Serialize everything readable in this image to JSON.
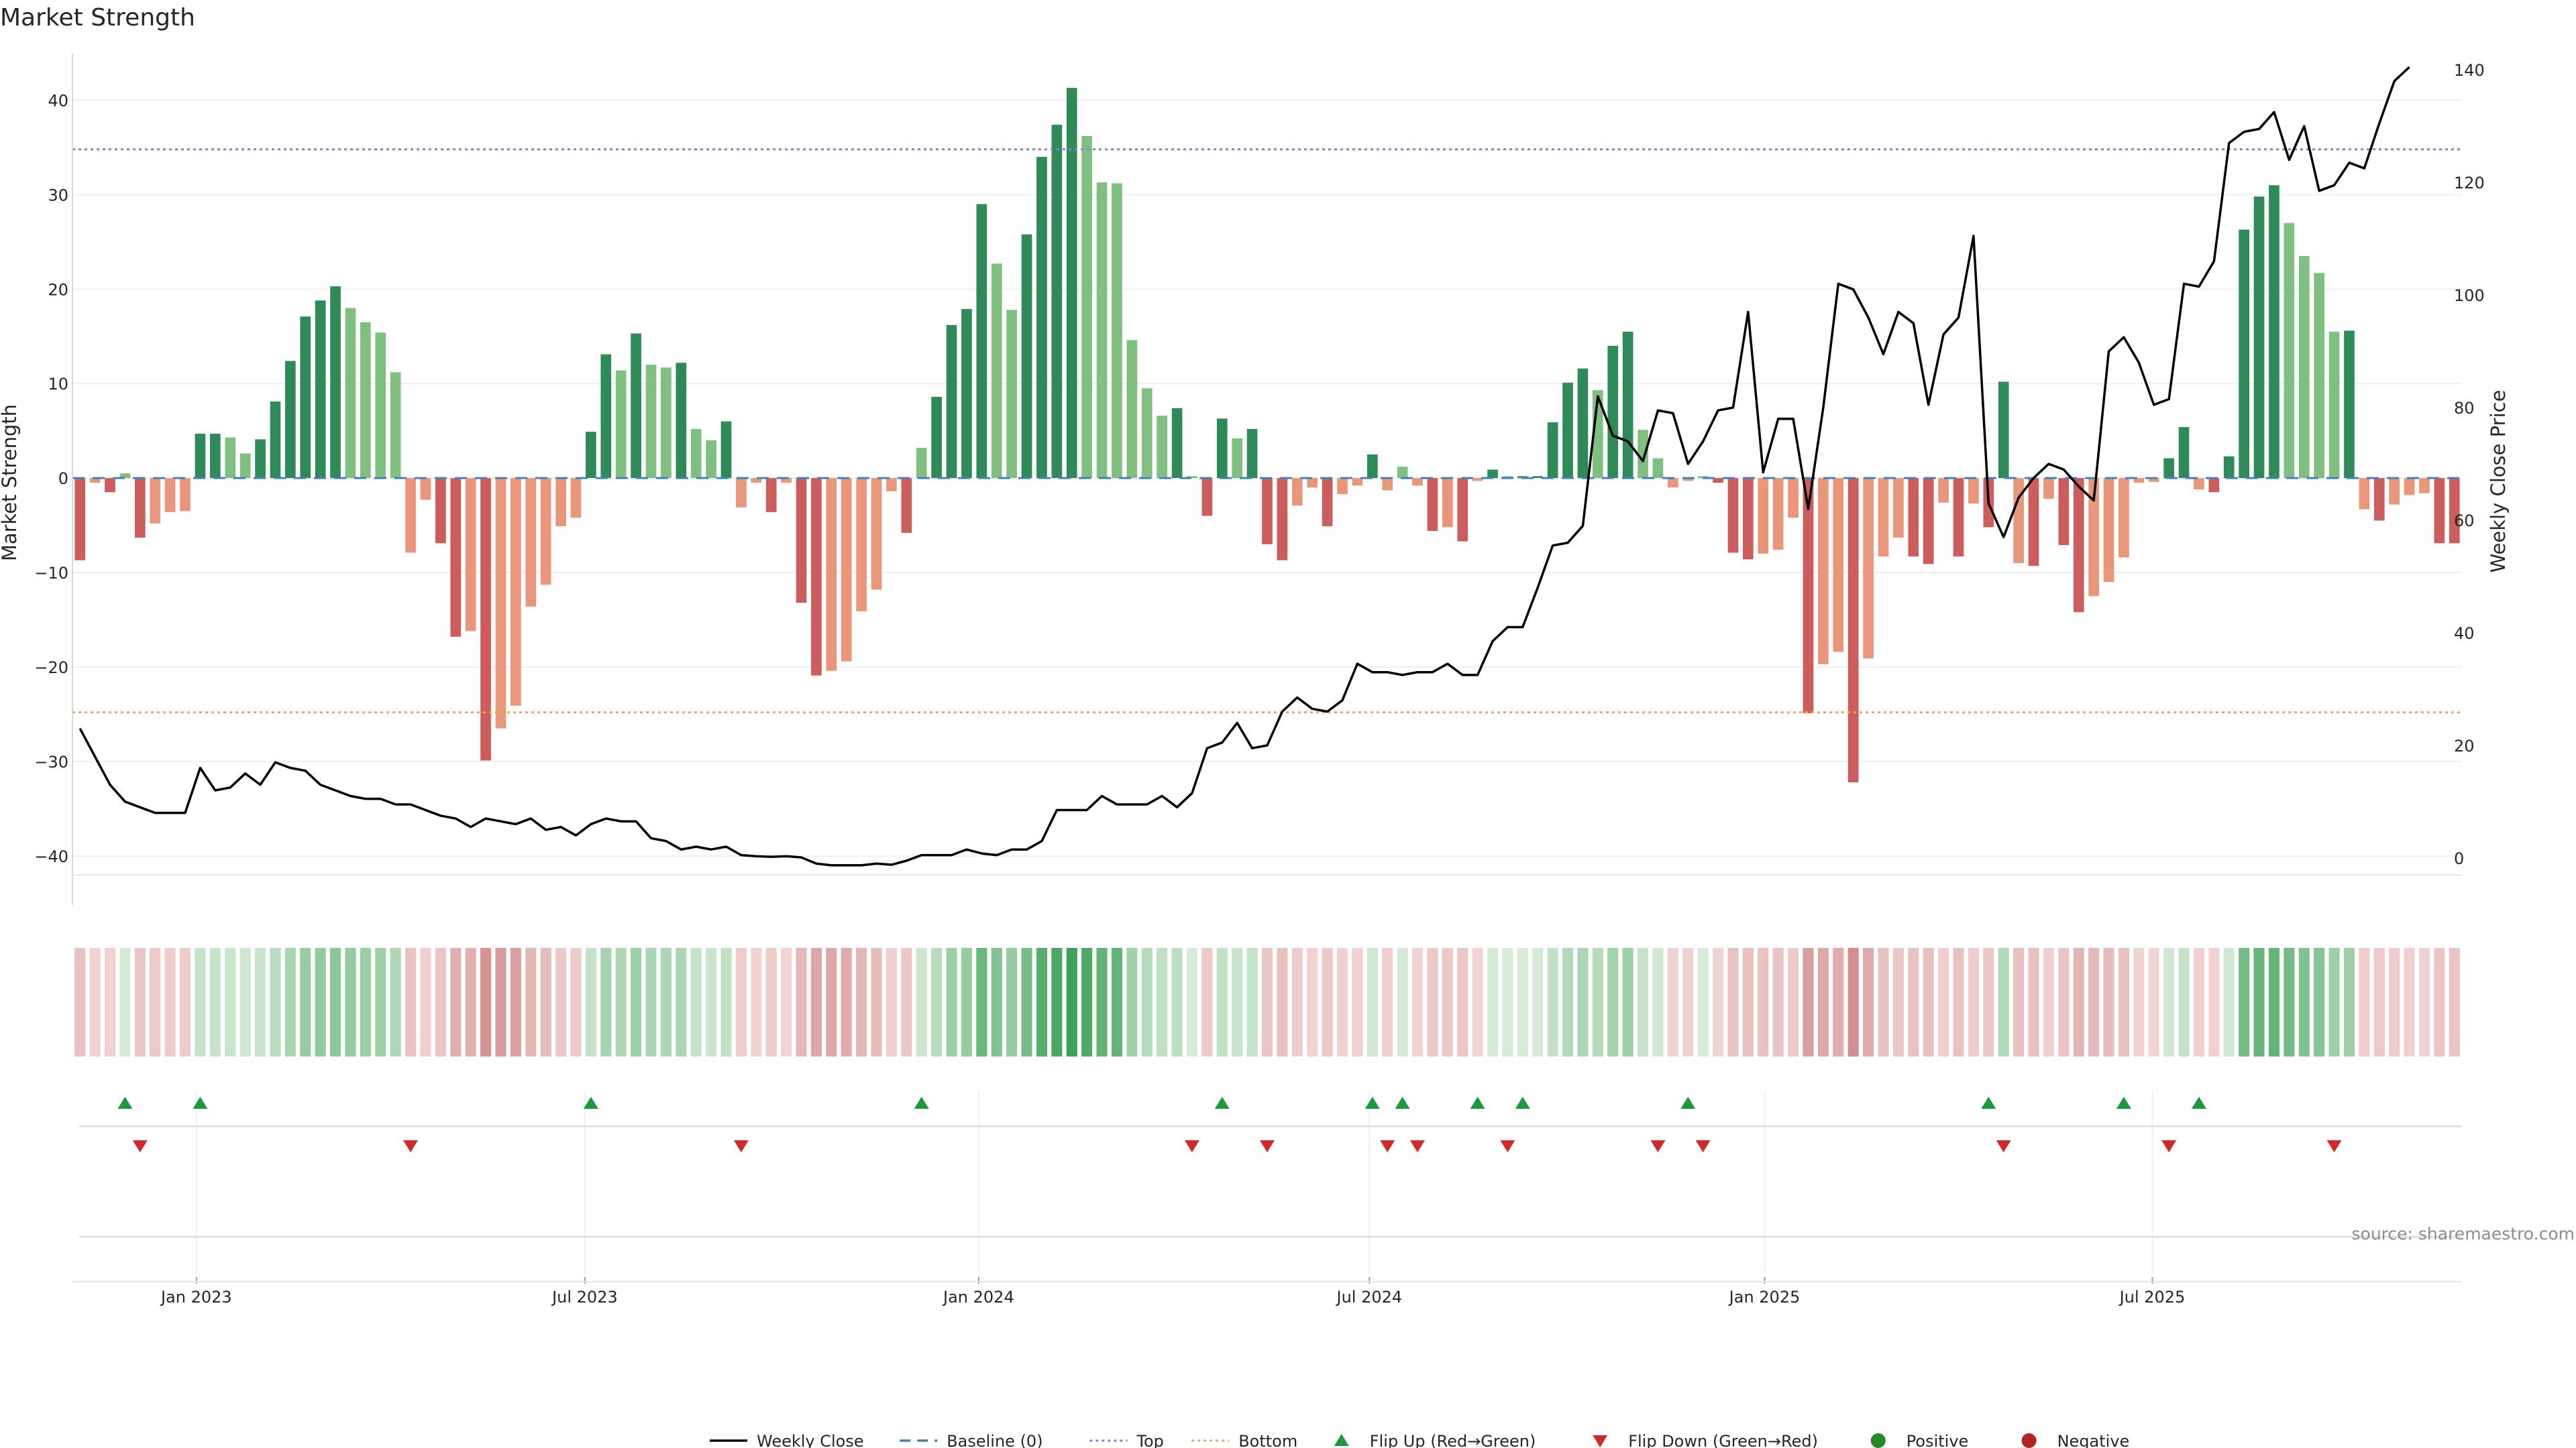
{
  "chart_data": {
    "type": "bar",
    "title": "Market Strength",
    "ylabel": "Market Strength",
    "y2label": "Weekly Close Price",
    "ylim": [
      -42,
      45
    ],
    "y2lim": [
      -3,
      143
    ],
    "y_ticks": [
      40,
      30,
      20,
      10,
      0,
      -10,
      -20,
      -30,
      -40
    ],
    "y_tick_labels": [
      "40",
      "30",
      "20",
      "10",
      "0",
      "−10",
      "−20",
      "−30",
      "−40"
    ],
    "y2_ticks": [
      140,
      120,
      100,
      80,
      60,
      40,
      20,
      0
    ],
    "y2_tick_labels": [
      "140",
      "120",
      "100",
      "80",
      "60",
      "40",
      "20",
      "0"
    ],
    "x_ticks": [
      {
        "label": "Jan 2023",
        "week": 7.75
      },
      {
        "label": "Jul 2023",
        "week": 33.6
      },
      {
        "label": "Jan 2024",
        "week": 59.8
      },
      {
        "label": "Jul 2024",
        "week": 85.8
      },
      {
        "label": "Jan 2025",
        "week": 112.1
      },
      {
        "label": "Jul 2025",
        "week": 137.9
      }
    ],
    "top_line": 34.8,
    "bottom_line": -24.8,
    "grid": true,
    "legend_position": "bottom",
    "colors": {
      "strong_green": "#2e8b57",
      "weak_green": "#7fc080",
      "strong_red": "#cd5c5c",
      "weak_red": "#e9967a",
      "close_line": "#000000",
      "baseline": "#4682b4",
      "top": "#8a7bd6",
      "bottom": "#f4a460",
      "flip_up": "#1a9a3c",
      "flip_down": "#d62728",
      "positive": "#228b22",
      "negative": "#b22222"
    },
    "series": [
      {
        "name": "Market Strength",
        "values": [
          -8.7,
          -0.5,
          -1.5,
          0.5,
          -6.3,
          -4.8,
          -3.6,
          -3.5,
          4.7,
          4.7,
          4.3,
          2.6,
          4.1,
          8.1,
          12.4,
          17.1,
          18.8,
          20.3,
          18.0,
          16.5,
          15.4,
          11.2,
          -7.9,
          -2.3,
          -6.9,
          -16.8,
          -16.2,
          -29.9,
          -26.5,
          -24.1,
          -13.6,
          -11.3,
          -5.1,
          -4.2,
          4.9,
          13.1,
          11.4,
          15.3,
          12.0,
          11.7,
          12.2,
          5.2,
          4.0,
          6.0,
          -3.1,
          -0.5,
          -3.6,
          -0.5,
          -13.2,
          -20.9,
          -20.4,
          -19.4,
          -14.1,
          -11.8,
          -1.4,
          -5.8,
          3.2,
          8.6,
          16.2,
          17.9,
          29.0,
          22.7,
          17.8,
          25.8,
          34.0,
          37.4,
          41.3,
          36.2,
          31.3,
          31.2,
          14.6,
          9.5,
          6.6,
          7.4,
          0.2,
          -4.0,
          6.3,
          4.2,
          5.2,
          -7.0,
          -8.7,
          -2.9,
          -1.0,
          -5.1,
          -1.7,
          -0.8,
          2.5,
          -1.3,
          1.2,
          -0.8,
          -5.6,
          -5.2,
          -6.7,
          -0.3,
          0.9,
          0.2,
          0.2,
          0.2,
          5.9,
          10.1,
          11.6,
          9.3,
          14.0,
          15.5,
          5.1,
          2.1,
          -1.0,
          -0.3,
          0.2,
          -0.5,
          -7.9,
          -8.6,
          -8.0,
          -7.6,
          -4.2,
          -24.9,
          -19.7,
          -18.4,
          -32.2,
          -19.1,
          -8.3,
          -6.3,
          -8.3,
          -9.1,
          -2.6,
          -8.3,
          -2.7,
          -5.2,
          10.2,
          -9.0,
          -9.3,
          -2.2,
          -7.1,
          -14.2,
          -12.5,
          -11.0,
          -8.4,
          -0.5,
          -0.4,
          2.1,
          5.4,
          -1.2,
          -1.5,
          2.3,
          26.3,
          29.8,
          31.0,
          27.0,
          23.5,
          21.7,
          15.5,
          15.6,
          -3.3,
          -4.5,
          -2.8,
          -1.8,
          -1.6,
          -6.9,
          -6.9
        ]
      },
      {
        "name": "Weekly Close",
        "values": [
          23,
          18,
          13,
          10,
          9,
          8,
          8,
          8,
          16,
          12,
          12.5,
          15,
          13,
          17,
          16,
          15.5,
          13,
          12,
          11,
          10.5,
          10.5,
          9.5,
          9.5,
          8.5,
          7.5,
          7,
          5.5,
          7,
          6.5,
          6,
          7,
          5,
          5.5,
          4,
          6,
          7,
          6.5,
          6.5,
          3.5,
          3,
          1.5,
          2,
          1.5,
          2,
          0.5,
          0.3,
          0.2,
          0.3,
          0.1,
          -1,
          -1.3,
          -1.3,
          -1.3,
          -1,
          -1.2,
          -0.5,
          0.5,
          0.5,
          0.5,
          1.5,
          0.8,
          0.5,
          1.5,
          1.5,
          3,
          8.5,
          8.5,
          8.5,
          11,
          9.5,
          9.5,
          9.5,
          11,
          9,
          11.5,
          19.5,
          20.5,
          24,
          19.5,
          20,
          26,
          28.5,
          26.5,
          26,
          28,
          34.5,
          33,
          33,
          32.5,
          33,
          33,
          34.5,
          32.5,
          32.5,
          38.5,
          41,
          41,
          48,
          55.5,
          56,
          59,
          82,
          75,
          74,
          70.5,
          79.5,
          79,
          70,
          74,
          79.5,
          80,
          97,
          68.5,
          78,
          78,
          62,
          80,
          102,
          101,
          96,
          89.5,
          97,
          95,
          80.5,
          93,
          96,
          110.5,
          63,
          57,
          64,
          67.5,
          70,
          69,
          66,
          63.5,
          90,
          92.5,
          88,
          80.5,
          81.5,
          102,
          101.5,
          106,
          127,
          129,
          129.5,
          132.5,
          124,
          130,
          118.5,
          119.5,
          123.5,
          122.5,
          130.5,
          138,
          140.5
        ]
      }
    ],
    "flip_up_weeks": [
      3,
      8,
      34,
      56,
      76,
      86,
      88,
      93,
      96,
      107,
      127,
      136,
      141
    ],
    "flip_down_weeks": [
      4,
      22,
      44,
      74,
      79,
      87,
      89,
      95,
      105,
      108,
      128,
      139,
      150
    ],
    "source_text": "source: sharemaestro.com",
    "legend": [
      {
        "label": "Weekly Close",
        "kind": "solid",
        "color": "#000000"
      },
      {
        "label": "Baseline (0)",
        "kind": "dashed",
        "color": "#4682b4"
      },
      {
        "label": "Top",
        "kind": "dotted",
        "color": "#8a7bd6"
      },
      {
        "label": "Bottom",
        "kind": "dotted",
        "color": "#f4a460"
      },
      {
        "label": "Flip Up (Red→Green)",
        "kind": "tri-up",
        "color": "#1a9a3c"
      },
      {
        "label": "Flip Down (Green→Red)",
        "kind": "tri-down",
        "color": "#d62728"
      },
      {
        "label": "Positive",
        "kind": "dot",
        "color": "#228b22"
      },
      {
        "label": "Negative",
        "kind": "dot",
        "color": "#b22222"
      }
    ]
  }
}
